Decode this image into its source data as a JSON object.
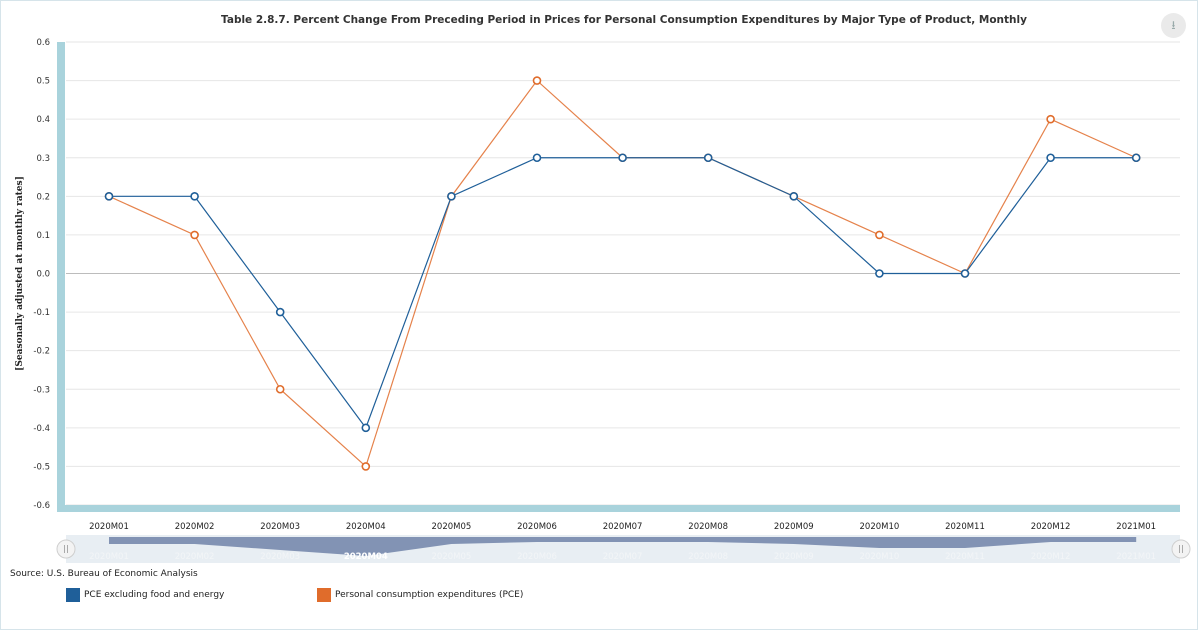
{
  "chart_data": {
    "type": "line",
    "title": "Table 2.8.7. Percent Change From Preceding Period in Prices for Personal Consumption Expenditures by Major Type of Product, Monthly",
    "ylabel": "[Seasonally adjusted at monthly rates]",
    "xlabel": "",
    "categories": [
      "2020M01",
      "2020M02",
      "2020M03",
      "2020M04",
      "2020M05",
      "2020M06",
      "2020M07",
      "2020M08",
      "2020M09",
      "2020M10",
      "2020M11",
      "2020M12",
      "2021M01"
    ],
    "ylim": [
      -0.6,
      0.6
    ],
    "yticks": [
      0.6,
      0.5,
      0.4,
      0.3,
      0.2,
      0.1,
      0.0,
      -0.1,
      -0.2,
      -0.3,
      -0.4,
      -0.5,
      -0.6
    ],
    "ytick_labels": [
      "0.6",
      "0.5",
      "0.4",
      "0.3",
      "0.2",
      "0.1",
      "0.0",
      "-0.1",
      "-0.2",
      "-0.3",
      "-0.4",
      "-0.5",
      "-0.6"
    ],
    "series": [
      {
        "name": "PCE excluding food and energy",
        "color": "#1f5f99",
        "values": [
          0.2,
          0.2,
          -0.1,
          -0.4,
          0.2,
          0.3,
          0.3,
          0.3,
          0.2,
          0.0,
          0.0,
          0.3,
          0.3
        ]
      },
      {
        "name": "Personal consumption expenditures (PCE)",
        "color": "#e06c2b",
        "values": [
          0.2,
          0.1,
          -0.3,
          -0.5,
          0.2,
          0.5,
          0.3,
          0.3,
          0.2,
          0.1,
          0.0,
          0.4,
          0.3
        ]
      }
    ],
    "grid": true,
    "legend_position": "bottom-left",
    "navigator_highlight": "2020M04"
  },
  "source_text": "Source: U.S. Bureau of Economic Analysis",
  "colors": {
    "axis_bar": "#a9d3dc",
    "grid": "#e6e6e6",
    "navigator_bg": "#e8eef3",
    "navigator_line": "#7083a8"
  },
  "icons": {
    "download": "download-arrow-icon",
    "navigator_handle": "scroll-handle-icon"
  }
}
